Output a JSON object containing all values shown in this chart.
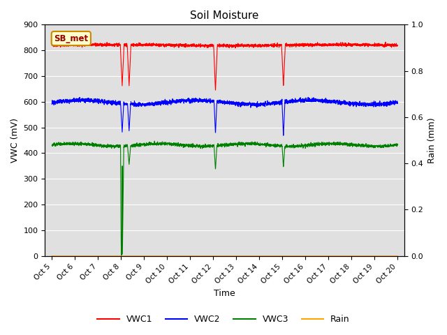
{
  "title": "Soil Moisture",
  "xlabel": "Time",
  "ylabel_left": "VWC (mV)",
  "ylabel_right": "Rain (mm)",
  "ylim_left": [
    0,
    900
  ],
  "ylim_right": [
    0.0,
    1.0
  ],
  "yticks_left": [
    0,
    100,
    200,
    300,
    400,
    500,
    600,
    700,
    800,
    900
  ],
  "yticks_right": [
    0.0,
    0.2,
    0.4,
    0.6,
    0.8,
    1.0
  ],
  "xtick_labels": [
    "Oct 5",
    "Oct 6",
    "Oct 7",
    "Oct 8",
    "Oct 9",
    "Oct 10",
    "Oct 11",
    "Oct 12",
    "Oct 13",
    "Oct 14",
    "Oct 15",
    "Oct 16",
    "Oct 17",
    "Oct 18",
    "Oct 19",
    "Oct 20"
  ],
  "station_label": "SB_met",
  "legend_entries": [
    "VWC1",
    "VWC2",
    "VWC3",
    "Rain"
  ],
  "line_colors": [
    "red",
    "blue",
    "green",
    "orange"
  ],
  "background_color": "#e0e0e0",
  "vwc1_base": 820,
  "vwc2_base": 598,
  "vwc3_base": 432,
  "rain_base": 0
}
